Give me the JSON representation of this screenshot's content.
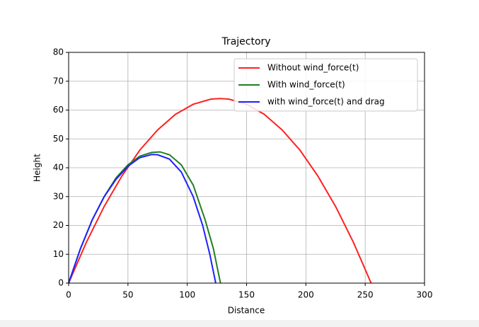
{
  "chart_data": {
    "type": "line",
    "title": "Trajectory",
    "x_label": "Distance",
    "y_label": "Height",
    "xlim": [
      0,
      300
    ],
    "ylim": [
      0,
      80
    ],
    "xticks": [
      0,
      50,
      100,
      150,
      200,
      250,
      300
    ],
    "yticks": [
      0,
      10,
      20,
      30,
      40,
      50,
      60,
      70,
      80
    ],
    "grid": true,
    "legend": "upper right",
    "series": [
      {
        "name": "Without wind_force(t)",
        "color": "#ff2020",
        "x": [
          0,
          15,
          30,
          45,
          60,
          75,
          90,
          105,
          120,
          127.5,
          135,
          150,
          165,
          180,
          195,
          210,
          225,
          240,
          255
        ],
        "values": [
          0,
          14.2,
          26.6,
          37.2,
          46.1,
          53.1,
          58.5,
          62.0,
          63.8,
          64,
          63.8,
          62.0,
          58.5,
          53.1,
          46.1,
          37.2,
          26.6,
          14.2,
          0
        ]
      },
      {
        "name": "With wind_force(t)",
        "color": "#208020",
        "x": [
          0,
          10,
          20,
          30,
          40,
          50,
          60,
          70,
          77,
          85,
          95,
          105,
          115,
          122,
          128
        ],
        "values": [
          0,
          12,
          22,
          30,
          36.5,
          41,
          44,
          45.3,
          45.5,
          44.5,
          41,
          34,
          22,
          12,
          0
        ]
      },
      {
        "name": "with wind_force(t) and drag",
        "color": "#2020ff",
        "x": [
          0,
          10,
          20,
          30,
          40,
          50,
          60,
          70,
          75,
          85,
          95,
          105,
          113,
          119,
          124
        ],
        "values": [
          0,
          12,
          22,
          30,
          36,
          40.5,
          43.5,
          44.6,
          44.5,
          43,
          38.5,
          30,
          20,
          10,
          0
        ]
      }
    ]
  }
}
